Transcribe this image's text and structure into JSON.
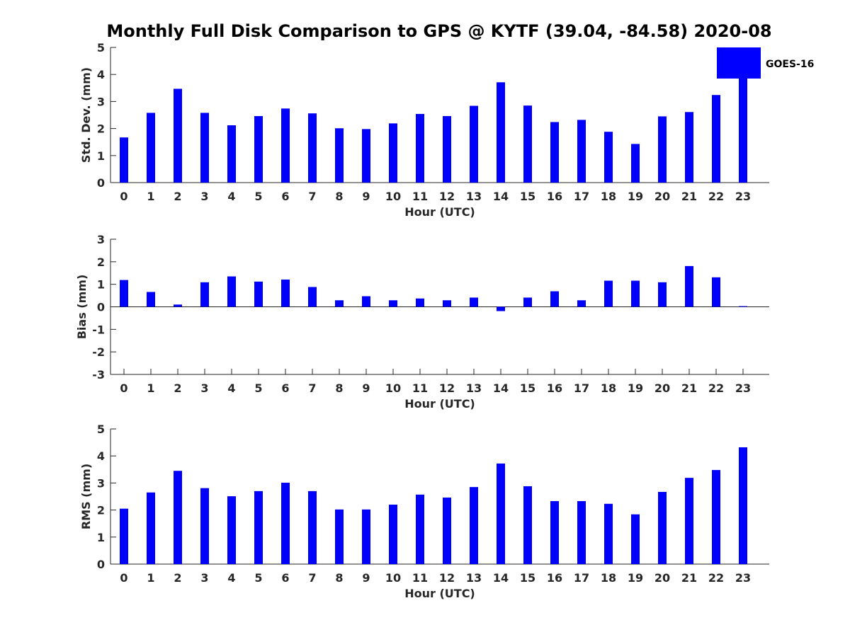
{
  "title": "Monthly Full Disk Comparison to GPS @ KYTF (39.04, -84.58) 2020-08",
  "colors": {
    "bar": "#0000ff",
    "axis": "#262626"
  },
  "legend": {
    "label": "GOES-16",
    "placement": "top-right"
  },
  "chart_data": [
    {
      "type": "bar",
      "title": "Monthly Full Disk Comparison to GPS @ KYTF (39.04, -84.58) 2020-08",
      "xlabel": "Hour (UTC)",
      "ylabel": "Std. Dev. (mm)",
      "ylim": [
        0,
        5
      ],
      "yticks": [
        0,
        1,
        2,
        3,
        4,
        5
      ],
      "categories": [
        "0",
        "1",
        "2",
        "3",
        "4",
        "5",
        "6",
        "7",
        "8",
        "9",
        "10",
        "11",
        "12",
        "13",
        "14",
        "15",
        "16",
        "17",
        "18",
        "19",
        "20",
        "21",
        "22",
        "23"
      ],
      "series": [
        {
          "name": "GOES-16",
          "values": [
            1.67,
            2.58,
            3.47,
            2.58,
            2.12,
            2.46,
            2.74,
            2.56,
            2.01,
            1.98,
            2.19,
            2.54,
            2.46,
            2.84,
            3.71,
            2.85,
            2.24,
            2.32,
            1.88,
            1.43,
            2.45,
            2.61,
            3.24,
            4.1
          ]
        }
      ]
    },
    {
      "type": "bar",
      "xlabel": "Hour (UTC)",
      "ylabel": "Bias (mm)",
      "ylim": [
        -3,
        3
      ],
      "yticks": [
        -3,
        -2,
        -1,
        0,
        1,
        2,
        3
      ],
      "categories": [
        "0",
        "1",
        "2",
        "3",
        "4",
        "5",
        "6",
        "7",
        "8",
        "9",
        "10",
        "11",
        "12",
        "13",
        "14",
        "15",
        "16",
        "17",
        "18",
        "19",
        "20",
        "21",
        "22",
        "23"
      ],
      "series": [
        {
          "name": "GOES-16",
          "values": [
            1.19,
            0.66,
            0.1,
            1.09,
            1.35,
            1.12,
            1.21,
            0.88,
            0.29,
            0.47,
            0.29,
            0.37,
            0.29,
            0.41,
            -0.19,
            0.41,
            0.69,
            0.29,
            1.16,
            1.16,
            1.09,
            1.81,
            1.31,
            0.03
          ]
        }
      ]
    },
    {
      "type": "bar",
      "xlabel": "Hour (UTC)",
      "ylabel": "RMS (mm)",
      "ylim": [
        0,
        5
      ],
      "yticks": [
        0,
        1,
        2,
        3,
        4,
        5
      ],
      "categories": [
        "0",
        "1",
        "2",
        "3",
        "4",
        "5",
        "6",
        "7",
        "8",
        "9",
        "10",
        "11",
        "12",
        "13",
        "14",
        "15",
        "16",
        "17",
        "18",
        "19",
        "20",
        "21",
        "22",
        "23"
      ],
      "series": [
        {
          "name": "GOES-16",
          "values": [
            2.05,
            2.65,
            3.45,
            2.81,
            2.51,
            2.7,
            3.01,
            2.7,
            2.02,
            2.02,
            2.2,
            2.57,
            2.46,
            2.85,
            3.72,
            2.88,
            2.33,
            2.33,
            2.23,
            1.84,
            2.67,
            3.19,
            3.48,
            4.32
          ]
        }
      ]
    }
  ]
}
